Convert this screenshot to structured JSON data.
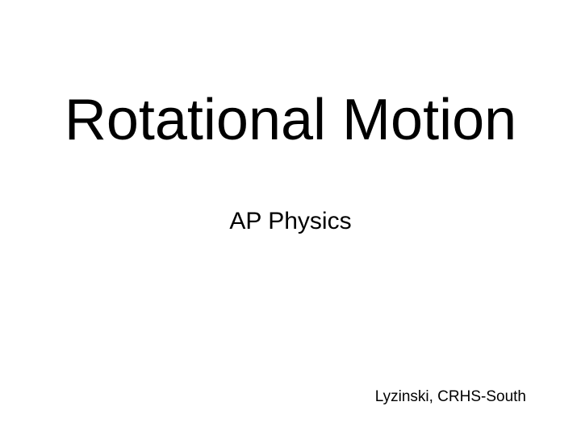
{
  "slide": {
    "title": "Rotational Motion",
    "subtitle": "AP Physics",
    "footer": "Lyzinski, CRHS-South",
    "background_color": "#ffffff",
    "text_color": "#000000",
    "title_fontsize": 72,
    "subtitle_fontsize": 30,
    "footer_fontsize": 19,
    "font_family": "Arial"
  }
}
